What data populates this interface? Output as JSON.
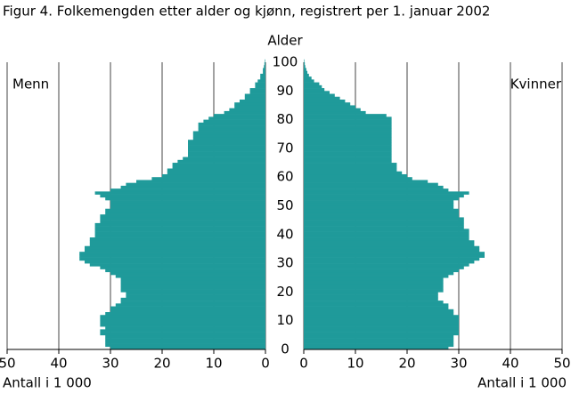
{
  "chart_data": {
    "type": "pyramid",
    "title": "Figur 4. Folkemengden etter alder og kjønn, registrert per 1. januar 2002",
    "ylabel": "Alder",
    "xlabel": "Antall i 1 000",
    "xlim": [
      0,
      50
    ],
    "xticks": [
      0,
      10,
      20,
      30,
      40,
      50
    ],
    "ylim": [
      0,
      100
    ],
    "yticks": [
      0,
      10,
      20,
      30,
      40,
      50,
      60,
      70,
      80,
      90,
      100
    ],
    "grid": true,
    "y": [
      0,
      1,
      2,
      3,
      4,
      5,
      6,
      7,
      8,
      9,
      10,
      11,
      12,
      13,
      14,
      15,
      16,
      17,
      18,
      19,
      20,
      21,
      22,
      23,
      24,
      25,
      26,
      27,
      28,
      29,
      30,
      31,
      32,
      33,
      34,
      35,
      36,
      37,
      38,
      39,
      40,
      41,
      42,
      43,
      44,
      45,
      46,
      47,
      48,
      49,
      50,
      51,
      52,
      53,
      54,
      55,
      56,
      57,
      58,
      59,
      60,
      61,
      62,
      63,
      64,
      65,
      66,
      67,
      68,
      69,
      70,
      71,
      72,
      73,
      74,
      75,
      76,
      77,
      78,
      79,
      80,
      81,
      82,
      83,
      84,
      85,
      86,
      87,
      88,
      89,
      90,
      91,
      92,
      93,
      94,
      95,
      96,
      97,
      98,
      99,
      100
    ],
    "series": [
      {
        "name": "Menn",
        "side": "left",
        "color": "#1f9a9a",
        "values": [
          30,
          31,
          31,
          31,
          31,
          32,
          32,
          31,
          32,
          32,
          32,
          32,
          31,
          30,
          30,
          29,
          28,
          28,
          27,
          27,
          28,
          28,
          28,
          28,
          28,
          29,
          30,
          31,
          32,
          34,
          35,
          36,
          36,
          36,
          35,
          35,
          34,
          34,
          34,
          33,
          33,
          33,
          33,
          33,
          32,
          32,
          32,
          31,
          31,
          30,
          30,
          30,
          31,
          32,
          33,
          30,
          28,
          27,
          25,
          22,
          20,
          19,
          19,
          18,
          18,
          17,
          16,
          15,
          15,
          15,
          15,
          15,
          15,
          14,
          14,
          14,
          13,
          13,
          13,
          12,
          11,
          10,
          8,
          7,
          6,
          6,
          5,
          4,
          4,
          3,
          3,
          2,
          2,
          1.5,
          1,
          1,
          0.5,
          0.5,
          0.3,
          0.2,
          0.1
        ]
      },
      {
        "name": "Kvinner",
        "side": "right",
        "color": "#1f9a9a",
        "values": [
          28,
          29,
          29,
          29,
          29,
          30,
          30,
          30,
          30,
          30,
          30,
          30,
          29,
          29,
          28,
          28,
          27,
          26,
          26,
          26,
          27,
          27,
          27,
          27,
          27,
          28,
          29,
          30,
          31,
          32,
          33,
          34,
          35,
          35,
          34,
          34,
          33,
          33,
          32,
          32,
          32,
          32,
          31,
          31,
          31,
          31,
          30,
          30,
          30,
          29,
          29,
          29,
          30,
          31,
          32,
          28,
          27,
          26,
          24,
          21,
          20,
          19,
          18,
          18,
          18,
          17,
          17,
          17,
          17,
          17,
          17,
          17,
          17,
          17,
          17,
          17,
          17,
          17,
          17,
          17,
          17,
          16,
          12,
          11,
          10,
          9,
          8,
          7,
          6,
          5,
          4,
          3.5,
          3,
          2,
          1.5,
          1,
          0.7,
          0.5,
          0.3,
          0.2,
          0.1
        ]
      }
    ]
  }
}
